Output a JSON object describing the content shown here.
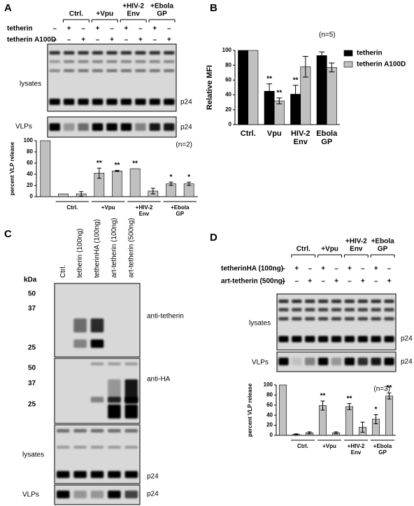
{
  "panels": {
    "a": "A",
    "b": "B",
    "c": "C",
    "d": "D"
  },
  "panel_a": {
    "headers": [
      [
        "Ctrl."
      ],
      [
        "+Vpu"
      ],
      [
        "+HIV-2",
        "Env"
      ],
      [
        "+Ebola",
        "GP"
      ]
    ],
    "rows": [
      {
        "label": "tetherin",
        "signs": [
          "–",
          "+",
          "–",
          "+",
          "–",
          "+",
          "–",
          "+",
          "–"
        ]
      },
      {
        "label": "tetherin A100D",
        "signs": [
          "–",
          "–",
          "+",
          "–",
          "+",
          "–",
          "+",
          "–",
          "+"
        ]
      }
    ],
    "labels": {
      "lysates": "lysates",
      "p24_lysates": "p24",
      "vlps": "VLPs",
      "p24_vlps": "p24"
    }
  },
  "panel_c": {
    "lanes": [
      "Ctrl.",
      "tetherin  (100ng)",
      "tetherinHA  (100ng)",
      "art-tetherin  (100ng)",
      "art-tetherin  (500ng)"
    ],
    "kda": "kDa",
    "markers_top": [
      50,
      37,
      25
    ],
    "markers_mid": [
      50,
      37,
      25
    ],
    "labels": {
      "anti_tetherin": "anti-tetherin",
      "anti_ha": "anti-HA",
      "lysates": "lysates",
      "p24_lysates": "p24",
      "vlps": "VLPs",
      "p24_vlps": "p24"
    }
  },
  "panel_d": {
    "headers": [
      [
        "Ctrl."
      ],
      [
        "+Vpu"
      ],
      [
        "+HIV-2",
        "Env"
      ],
      [
        "+Ebola",
        "GP"
      ]
    ],
    "rows": [
      {
        "label": "tetherinHA (100ng)",
        "signs": [
          "–",
          "+",
          "–",
          "+",
          "–",
          "+",
          "–",
          "+",
          "–"
        ]
      },
      {
        "label": "art-tetherin (500ng)",
        "signs": [
          "–",
          "–",
          "+",
          "–",
          "+",
          "–",
          "+",
          "–",
          "+"
        ]
      }
    ],
    "labels": {
      "lysates": "lysates",
      "p24_lysates": "p24",
      "vlps": "VLPs",
      "p24_vlps": "p24"
    }
  },
  "chart_data": [
    {
      "type": "bar",
      "ylabel": "percent VLP release",
      "note": "(n=2)",
      "categories": [
        null,
        null,
        null,
        null,
        null,
        null,
        null,
        null,
        null
      ],
      "values": [
        100,
        5,
        5,
        42,
        46,
        50,
        10,
        23,
        23
      ],
      "errors": [
        null,
        null,
        4,
        9,
        1,
        null,
        5,
        3,
        3
      ],
      "significance": [
        null,
        null,
        null,
        "**",
        "**",
        "**",
        null,
        "*",
        "*"
      ],
      "groups": [
        [
          "Ctrl."
        ],
        [
          "+Vpu"
        ],
        [
          "+HIV-2",
          "Env"
        ],
        [
          "+Ebola",
          "GP"
        ]
      ],
      "color": "#c0c0c0",
      "ylim": [
        0,
        100
      ],
      "yticks": [
        0,
        20,
        40,
        60,
        80,
        100
      ]
    },
    {
      "type": "grouped_bar",
      "ylabel": "Relative MFI",
      "note": "(n=5)",
      "categories": [
        [
          "Ctrl."
        ],
        [
          "Vpu"
        ],
        [
          "HIV-2",
          "Env"
        ],
        [
          "Ebola",
          "GP"
        ]
      ],
      "series": [
        {
          "name": "tetherin",
          "color": "#000000",
          "values": [
            100,
            45,
            41,
            93
          ],
          "errors": [
            null,
            10,
            12,
            5
          ],
          "significance": [
            null,
            "**",
            "**",
            null
          ]
        },
        {
          "name": "tetherin A100D",
          "color": "#c0c0c0",
          "values": [
            100,
            32,
            78,
            77
          ],
          "errors": [
            null,
            4,
            14,
            6
          ],
          "significance": [
            null,
            "**",
            null,
            null
          ]
        }
      ],
      "ylim": [
        0,
        100
      ],
      "yticks": [
        0,
        20,
        40,
        60,
        80,
        100
      ]
    },
    {
      "type": "bar",
      "ylabel": "percent VLP release",
      "note": "(n=3)",
      "categories": [
        null,
        null,
        null,
        null,
        null,
        null,
        null,
        null,
        null
      ],
      "values": [
        100,
        2,
        5,
        59,
        5,
        57,
        16,
        32,
        78
      ],
      "errors": [
        null,
        1,
        2,
        9,
        2,
        6,
        10,
        9,
        6
      ],
      "significance": [
        null,
        null,
        null,
        "**",
        null,
        "**",
        null,
        "*",
        "**"
      ],
      "groups": [
        [
          "Ctrl."
        ],
        [
          "+Vpu"
        ],
        [
          "+HIV-2",
          "Env"
        ],
        [
          "+Ebola",
          "GP"
        ]
      ],
      "color": "#c0c0c0",
      "ylim": [
        0,
        100
      ],
      "yticks": [
        0,
        20,
        40,
        60,
        80,
        100
      ]
    }
  ]
}
